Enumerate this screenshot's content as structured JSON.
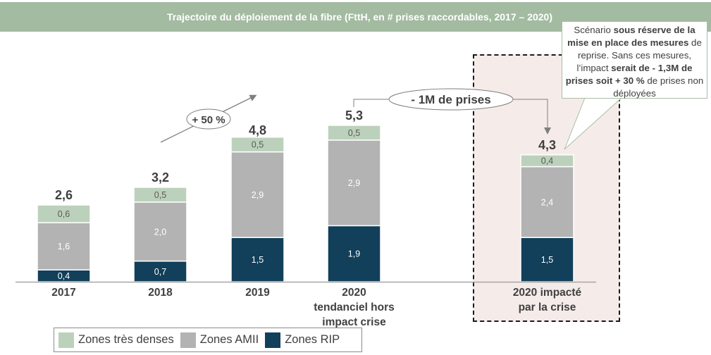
{
  "header": {
    "title": "Trajectoire du déploiement de la fibre (FttH, en # prises raccordables, 2017 – 2020)"
  },
  "colors": {
    "header_bg": "#a3bba1",
    "zones_tres_denses": "#bcd1bb",
    "zones_amii": "#b3b3b3",
    "zones_rip": "#123f5a",
    "crisis_zone_bg": "#f5ece9"
  },
  "chart_data": {
    "type": "bar",
    "stacked": true,
    "title": "Trajectoire du déploiement de la fibre (FttH, en # prises raccordables, 2017 – 2020)",
    "unit": "millions de prises raccordables",
    "categories": [
      "2017",
      "2018",
      "2019",
      "2020 tendanciel hors impact crise",
      "2020 impacté par la crise"
    ],
    "category_lines": [
      [
        "2017"
      ],
      [
        "2018"
      ],
      [
        "2019"
      ],
      [
        "2020",
        "tendanciel hors",
        "impact crise"
      ],
      [
        "2020 impacté",
        "par la crise"
      ]
    ],
    "series": [
      {
        "name": "Zones RIP",
        "color": "#123f5a",
        "label_color": "#ffffff",
        "values": [
          0.4,
          0.7,
          1.5,
          1.9,
          1.5
        ],
        "labels": [
          "0,4",
          "0,7",
          "1,5",
          "1,9",
          "1,5"
        ]
      },
      {
        "name": "Zones AMII",
        "color": "#b3b3b3",
        "label_color": "#ffffff",
        "values": [
          1.6,
          2.0,
          2.9,
          2.9,
          2.4
        ],
        "labels": [
          "1,6",
          "2,0",
          "2,9",
          "2,9",
          "2,4"
        ]
      },
      {
        "name": "Zones très denses",
        "color": "#bcd1bb",
        "label_color": "#595959",
        "values": [
          0.6,
          0.5,
          0.5,
          0.5,
          0.4
        ],
        "labels": [
          "0,6",
          "0,5",
          "0,5",
          "0,5",
          "0,4"
        ]
      }
    ],
    "totals": [
      2.6,
      3.2,
      4.8,
      5.3,
      4.3
    ],
    "total_labels": [
      "2,6",
      "3,2",
      "4,8",
      "5,3",
      "4,3"
    ],
    "ylim": [
      0,
      6
    ],
    "grid": false,
    "legend_position": "bottom-left",
    "legend": [
      "Zones très denses",
      "Zones AMII",
      "Zones RIP"
    ],
    "annotations": {
      "growth": "+ 50 %",
      "gap": "- 1M de prises",
      "callout": {
        "parts": [
          {
            "text": "Scénario ",
            "bold": false
          },
          {
            "text": "sous réserve de la mise en place des mesures",
            "bold": true
          },
          {
            "text": " de reprise. Sans ces mesures, l’impact ",
            "bold": false
          },
          {
            "text": "serait de - 1,3M de prises soit + 30 %",
            "bold": true
          },
          {
            "text": " de prises non déployées",
            "bold": false
          }
        ]
      }
    }
  }
}
